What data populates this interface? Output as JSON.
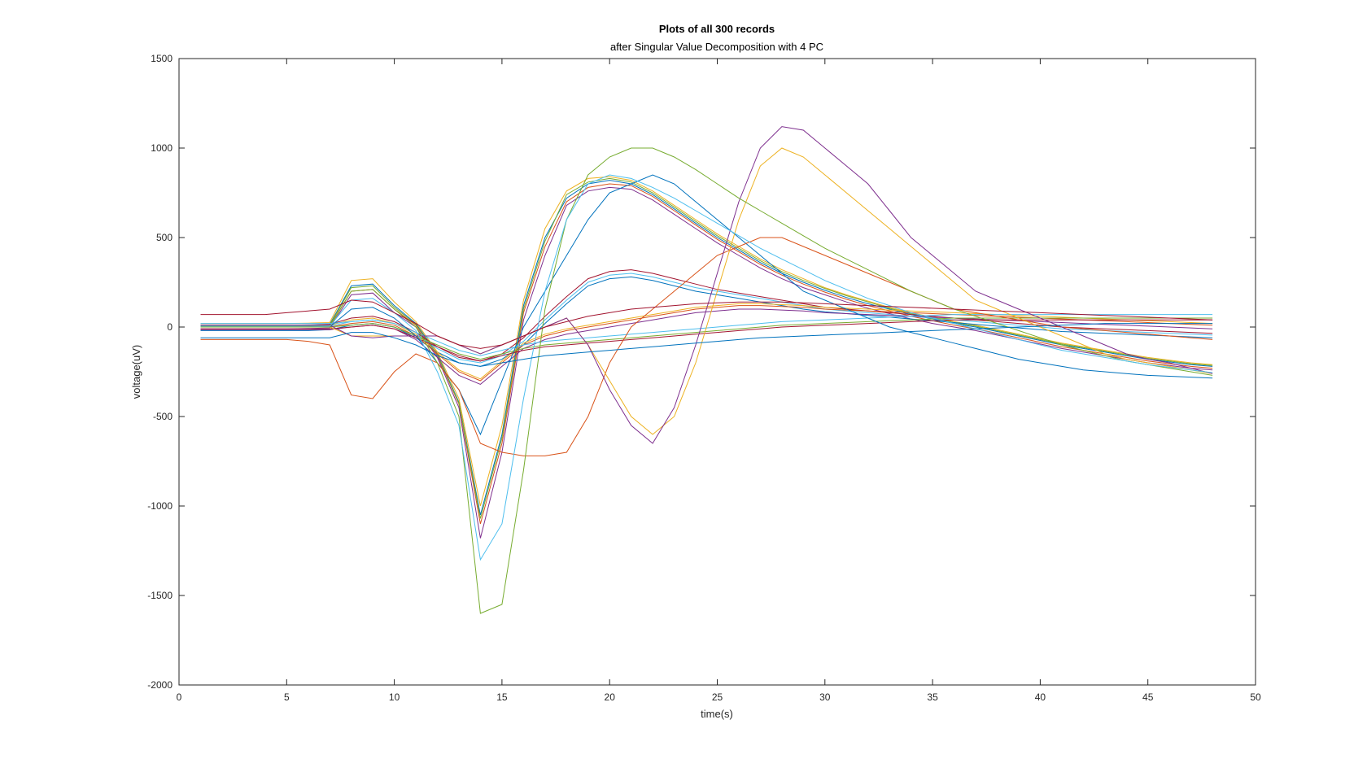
{
  "chart_data": {
    "type": "line",
    "title": "Plots of all 300 records",
    "subtitle": "after Singular Value Decomposition with 4 PC",
    "xlabel": "time(s)",
    "ylabel": "voltage(uV)",
    "xlim": [
      0,
      50
    ],
    "ylim": [
      -2000,
      1500
    ],
    "xticks": [
      0,
      5,
      10,
      15,
      20,
      25,
      30,
      35,
      40,
      45,
      50
    ],
    "yticks": [
      -2000,
      -1500,
      -1000,
      -500,
      0,
      500,
      1000,
      1500
    ],
    "grid": false,
    "legend": "none",
    "record_count": 300,
    "x": [
      1,
      2,
      3,
      4,
      5,
      6,
      7,
      8,
      9,
      10,
      11,
      12,
      13,
      14,
      15,
      16,
      17,
      18,
      19,
      20,
      21,
      22,
      23,
      24,
      25,
      26,
      27,
      28,
      29,
      30,
      31,
      32,
      33,
      34,
      35,
      36,
      37,
      38,
      39,
      40,
      41,
      42,
      43,
      44,
      45,
      46,
      47,
      48
    ],
    "palette": [
      "#0072BD",
      "#D95319",
      "#EDB120",
      "#7E2F8E",
      "#77AC30",
      "#4DBEEE",
      "#A2142F"
    ],
    "series": [
      {
        "values": [
          10,
          10,
          10,
          10,
          10,
          12,
          15,
          230,
          240,
          120,
          20,
          -150,
          -420,
          -1050,
          -600,
          120,
          500,
          720,
          800,
          820,
          800,
          740,
          660,
          580,
          500,
          430,
          360,
          300,
          250,
          205,
          165,
          130,
          100,
          70,
          45,
          20,
          0,
          -25,
          -50,
          -75,
          -100,
          -120,
          -140,
          -160,
          -180,
          -195,
          -210,
          -220
        ]
      },
      {
        "values": [
          0,
          0,
          0,
          0,
          0,
          2,
          5,
          200,
          210,
          100,
          10,
          -160,
          -430,
          -1100,
          -650,
          80,
          450,
          700,
          780,
          800,
          790,
          730,
          650,
          570,
          490,
          420,
          350,
          290,
          240,
          195,
          155,
          120,
          90,
          60,
          35,
          10,
          -10,
          -35,
          -60,
          -85,
          -110,
          -130,
          -150,
          -170,
          -190,
          -205,
          -220,
          -230
        ]
      },
      {
        "values": [
          20,
          20,
          20,
          20,
          20,
          22,
          25,
          260,
          270,
          140,
          30,
          -140,
          -400,
          -1000,
          -550,
          150,
          550,
          760,
          830,
          840,
          820,
          760,
          680,
          600,
          520,
          450,
          380,
          320,
          270,
          220,
          180,
          145,
          110,
          80,
          55,
          30,
          10,
          -15,
          -40,
          -65,
          -90,
          -110,
          -130,
          -150,
          -170,
          -185,
          -200,
          -210
        ]
      },
      {
        "values": [
          -10,
          -10,
          -10,
          -10,
          -10,
          -8,
          -5,
          180,
          190,
          80,
          0,
          -170,
          -450,
          -1180,
          -700,
          40,
          400,
          680,
          760,
          780,
          770,
          710,
          630,
          550,
          470,
          400,
          330,
          270,
          220,
          180,
          140,
          105,
          75,
          45,
          20,
          0,
          -20,
          -45,
          -70,
          -95,
          -120,
          -140,
          -160,
          -180,
          -200,
          -215,
          -230,
          -240
        ]
      },
      {
        "values": [
          5,
          5,
          5,
          5,
          5,
          7,
          10,
          220,
          230,
          110,
          15,
          -155,
          -425,
          -1070,
          -620,
          100,
          480,
          740,
          810,
          830,
          810,
          750,
          670,
          590,
          510,
          440,
          370,
          310,
          260,
          215,
          175,
          140,
          105,
          75,
          50,
          25,
          5,
          -20,
          -45,
          -70,
          -95,
          -115,
          -135,
          -155,
          -175,
          -190,
          -205,
          -215
        ]
      },
      {
        "values": [
          0,
          0,
          0,
          0,
          0,
          0,
          5,
          30,
          40,
          20,
          -40,
          -120,
          -180,
          -200,
          -160,
          -80,
          40,
          150,
          250,
          290,
          300,
          280,
          250,
          220,
          200,
          180,
          160,
          140,
          120,
          100,
          90,
          80,
          70,
          60,
          50,
          40,
          30,
          20,
          10,
          0,
          -10,
          -15,
          -20,
          -25,
          -30,
          -35,
          -40,
          -45
        ]
      },
      {
        "values": [
          10,
          10,
          10,
          10,
          10,
          10,
          15,
          50,
          60,
          30,
          -30,
          -110,
          -170,
          -190,
          -150,
          -60,
          60,
          170,
          270,
          310,
          320,
          300,
          270,
          240,
          210,
          190,
          170,
          150,
          130,
          110,
          100,
          90,
          80,
          70,
          60,
          50,
          40,
          30,
          20,
          10,
          0,
          -5,
          -10,
          -15,
          -20,
          -25,
          -30,
          -35
        ]
      },
      {
        "values": [
          -20,
          -20,
          -20,
          -20,
          -20,
          -20,
          -15,
          10,
          20,
          0,
          -60,
          -140,
          -200,
          -220,
          -180,
          -100,
          20,
          130,
          230,
          270,
          280,
          260,
          230,
          200,
          180,
          160,
          140,
          120,
          100,
          85,
          75,
          65,
          55,
          45,
          35,
          25,
          15,
          5,
          -5,
          -15,
          -25,
          -30,
          -35,
          -40,
          -45,
          -50,
          -55,
          -60
        ]
      },
      {
        "values": [
          0,
          0,
          0,
          0,
          0,
          0,
          0,
          20,
          30,
          10,
          -50,
          -150,
          -250,
          -300,
          -200,
          -100,
          -50,
          -20,
          0,
          20,
          40,
          60,
          80,
          100,
          110,
          120,
          120,
          115,
          110,
          100,
          95,
          90,
          85,
          80,
          75,
          70,
          65,
          60,
          55,
          50,
          45,
          40,
          35,
          30,
          25,
          20,
          15,
          10
        ]
      },
      {
        "values": [
          10,
          10,
          10,
          10,
          10,
          10,
          10,
          40,
          50,
          20,
          -40,
          -140,
          -240,
          -290,
          -190,
          -90,
          -40,
          -10,
          10,
          30,
          50,
          70,
          90,
          110,
          120,
          130,
          130,
          125,
          120,
          110,
          105,
          100,
          95,
          90,
          85,
          80,
          75,
          70,
          65,
          60,
          55,
          50,
          45,
          40,
          35,
          30,
          25,
          20
        ]
      },
      {
        "values": [
          -15,
          -15,
          -15,
          -15,
          -15,
          -15,
          -15,
          0,
          10,
          -10,
          -70,
          -170,
          -270,
          -320,
          -220,
          -120,
          -70,
          -40,
          -20,
          0,
          20,
          40,
          60,
          80,
          90,
          100,
          100,
          95,
          90,
          80,
          75,
          70,
          65,
          60,
          55,
          50,
          45,
          40,
          35,
          30,
          25,
          20,
          15,
          10,
          5,
          0,
          -5,
          -10
        ]
      },
      {
        "values": [
          0,
          0,
          0,
          0,
          0,
          0,
          0,
          10,
          20,
          0,
          -50,
          -100,
          -150,
          -180,
          -150,
          -120,
          -100,
          -90,
          -80,
          -70,
          -60,
          -50,
          -40,
          -30,
          -20,
          -10,
          0,
          10,
          15,
          20,
          25,
          30,
          35,
          40,
          45,
          50,
          50,
          50,
          50,
          50,
          50,
          50,
          50,
          50,
          50,
          50,
          50,
          50
        ]
      },
      {
        "values": [
          20,
          20,
          20,
          20,
          20,
          20,
          20,
          30,
          40,
          20,
          -30,
          -80,
          -130,
          -160,
          -130,
          -100,
          -80,
          -70,
          -60,
          -50,
          -40,
          -30,
          -20,
          -10,
          0,
          10,
          20,
          30,
          35,
          40,
          45,
          50,
          55,
          60,
          65,
          70,
          70,
          70,
          70,
          70,
          70,
          70,
          70,
          70,
          70,
          70,
          70,
          70
        ]
      },
      {
        "values": [
          -10,
          -10,
          -10,
          -10,
          -10,
          -10,
          -10,
          0,
          10,
          -10,
          -60,
          -110,
          -160,
          -190,
          -160,
          -130,
          -110,
          -100,
          -90,
          -80,
          -70,
          -60,
          -50,
          -40,
          -30,
          -20,
          -10,
          0,
          5,
          10,
          15,
          20,
          25,
          30,
          35,
          40,
          40,
          40,
          40,
          40,
          40,
          40,
          40,
          40,
          40,
          40,
          40,
          40
        ]
      },
      {
        "values": [
          0,
          0,
          0,
          0,
          0,
          0,
          0,
          100,
          110,
          50,
          -50,
          -200,
          -350,
          -600,
          -300,
          0,
          200,
          400,
          600,
          750,
          800,
          850,
          800,
          700,
          600,
          500,
          400,
          300,
          200,
          150,
          100,
          50,
          0,
          -30,
          -60,
          -90,
          -120,
          -150,
          -180,
          -200,
          -220,
          -240,
          -250,
          -260,
          -270,
          -275,
          -280,
          -285
        ]
      },
      {
        "values": [
          -70,
          -70,
          -70,
          -70,
          -70,
          -80,
          -100,
          -380,
          -400,
          -250,
          -150,
          -200,
          -350,
          -650,
          -700,
          -720,
          -720,
          -700,
          -500,
          -200,
          0,
          100,
          200,
          300,
          400,
          450,
          500,
          500,
          450,
          400,
          350,
          300,
          250,
          200,
          150,
          100,
          80,
          60,
          40,
          20,
          0,
          -10,
          -20,
          -30,
          -40,
          -50,
          -60,
          -70
        ]
      },
      {
        "values": [
          0,
          0,
          0,
          0,
          0,
          0,
          0,
          -50,
          -50,
          -50,
          -50,
          -50,
          -100,
          -150,
          -100,
          -50,
          0,
          50,
          -100,
          -300,
          -500,
          -600,
          -500,
          -200,
          200,
          600,
          900,
          1000,
          950,
          850,
          750,
          650,
          550,
          450,
          350,
          250,
          150,
          100,
          50,
          0,
          -50,
          -100,
          -150,
          -180,
          -200,
          -220,
          -240,
          -260
        ]
      },
      {
        "values": [
          10,
          10,
          10,
          10,
          10,
          10,
          10,
          -50,
          -60,
          -50,
          -50,
          -50,
          -100,
          -150,
          -100,
          -50,
          0,
          50,
          -100,
          -350,
          -550,
          -650,
          -450,
          -100,
          300,
          700,
          1000,
          1120,
          1100,
          1000,
          900,
          800,
          650,
          500,
          400,
          300,
          200,
          150,
          100,
          50,
          0,
          -50,
          -100,
          -150,
          -180,
          -200,
          -230,
          -260
        ]
      },
      {
        "values": [
          0,
          0,
          0,
          0,
          0,
          0,
          0,
          200,
          210,
          100,
          0,
          -200,
          -500,
          -1600,
          -1550,
          -800,
          100,
          600,
          850,
          950,
          1000,
          1000,
          950,
          880,
          800,
          720,
          650,
          580,
          510,
          440,
          380,
          320,
          260,
          200,
          150,
          100,
          60,
          20,
          -20,
          -60,
          -100,
          -130,
          -160,
          -190,
          -210,
          -230,
          -250,
          -270
        ]
      },
      {
        "values": [
          5,
          5,
          5,
          5,
          5,
          5,
          5,
          150,
          160,
          80,
          -20,
          -250,
          -550,
          -1300,
          -1100,
          -400,
          200,
          600,
          800,
          850,
          830,
          780,
          720,
          650,
          580,
          510,
          440,
          380,
          320,
          260,
          210,
          160,
          120,
          80,
          50,
          20,
          -10,
          -40,
          -70,
          -100,
          -130,
          -150,
          -170,
          -190,
          -210,
          -225,
          -240,
          -255
        ]
      },
      {
        "values": [
          70,
          70,
          70,
          70,
          80,
          90,
          100,
          150,
          140,
          80,
          20,
          -50,
          -100,
          -120,
          -100,
          -50,
          0,
          30,
          60,
          80,
          100,
          110,
          120,
          130,
          135,
          140,
          140,
          140,
          135,
          130,
          125,
          120,
          115,
          110,
          105,
          100,
          95,
          90,
          85,
          80,
          75,
          70,
          65,
          60,
          55,
          50,
          45,
          40
        ]
      },
      {
        "values": [
          -60,
          -60,
          -60,
          -60,
          -60,
          -60,
          -60,
          -30,
          -30,
          -60,
          -100,
          -160,
          -200,
          -220,
          -200,
          -180,
          -160,
          -150,
          -140,
          -130,
          -120,
          -110,
          -100,
          -90,
          -80,
          -70,
          -60,
          -55,
          -50,
          -45,
          -40,
          -35,
          -30,
          -25,
          -20,
          -15,
          -10,
          -5,
          0,
          5,
          10,
          15,
          20,
          20,
          20,
          20,
          20,
          20
        ]
      }
    ]
  }
}
